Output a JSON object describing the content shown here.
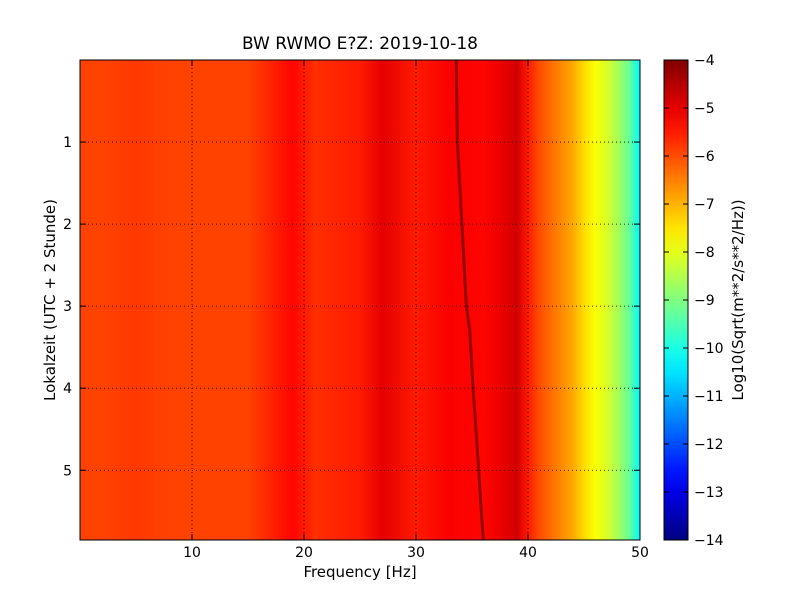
{
  "chart_data": {
    "type": "heatmap",
    "title": "BW RWMO E?Z: 2019-10-18",
    "xlabel": "Frequency [Hz]",
    "ylabel": "Lokalzeit (UTC + 2 Stunde)",
    "colorbar_label": "Log10(Sqrt(m**2/s**2/Hz))",
    "xlim": [
      0,
      50
    ],
    "ylim_top_to_bottom": [
      0,
      5.85
    ],
    "x_ticks": [
      10,
      20,
      30,
      40,
      50
    ],
    "y_ticks": [
      1,
      2,
      3,
      4,
      5
    ],
    "colorbar_range": [
      -14,
      -4
    ],
    "colorbar_ticks": [
      -4,
      -5,
      -6,
      -7,
      -8,
      -9,
      -10,
      -11,
      -12,
      -13,
      -14
    ],
    "grid": true,
    "colormap": "jet",
    "frequency_profile": {
      "frequency_hz": [
        0,
        2,
        5,
        8,
        10,
        15,
        19,
        21,
        25,
        27,
        30,
        33,
        36,
        38,
        39,
        40,
        41,
        42,
        43,
        44,
        45,
        46,
        47,
        48,
        49,
        50
      ],
      "log10_amplitude": [
        -5.9,
        -5.9,
        -5.8,
        -5.9,
        -5.9,
        -5.9,
        -5.3,
        -5.7,
        -5.5,
        -5.0,
        -5.5,
        -5.2,
        -5.3,
        -5.0,
        -4.8,
        -5.5,
        -6.0,
        -6.3,
        -6.6,
        -6.9,
        -7.4,
        -7.8,
        -8.1,
        -8.6,
        -9.2,
        -10.3
      ]
    },
    "tremor_line": {
      "hour": [
        0,
        1,
        2,
        3,
        3.3,
        4,
        5,
        5.85
      ],
      "frequency_hz": [
        33.6,
        33.7,
        34.1,
        34.5,
        34.8,
        35.1,
        35.6,
        36.0
      ],
      "log10_amplitude": -4.2
    }
  }
}
